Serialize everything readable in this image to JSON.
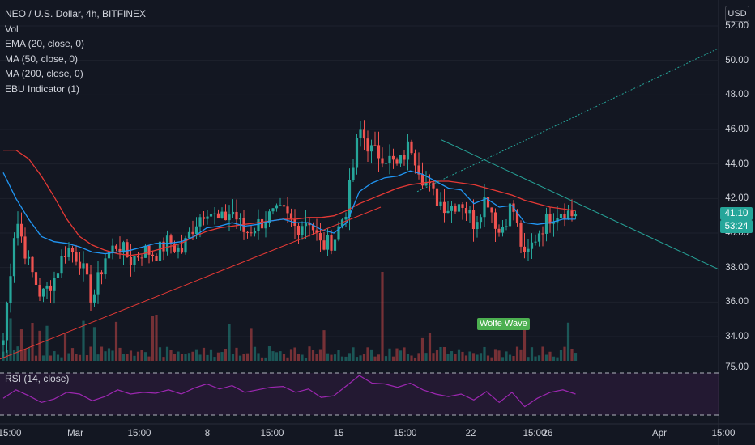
{
  "legend": {
    "title": "NEO / U.S. Dollar, 4h, BITFINEX",
    "vol": "Vol",
    "ema": "EMA (20, close, 0)",
    "ma50": "MA (50, close, 0)",
    "ma200": "MA (200, close, 0)",
    "ebu": "EBU Indicator (1)"
  },
  "currency": "USD",
  "price_label": "41.10",
  "countdown": "53:24",
  "wolfe_label": "Wolfe Wave",
  "rsi": {
    "label": "RSI (14, close)",
    "upper_label": "75.00"
  },
  "colors": {
    "up": "#26a69a",
    "down": "#ef5350",
    "ema": "#2196f3",
    "ma": "#e53935",
    "rsi": "#9c27b0",
    "bg": "#131722"
  },
  "chart_data": {
    "type": "candlestick",
    "symbol": "NEO / U.S. Dollar",
    "interval": "4h",
    "exchange": "BITFINEX",
    "y_ticks": [
      "52.00",
      "50.00",
      "48.00",
      "46.00",
      "44.00",
      "42.00",
      "40.00",
      "38.00",
      "36.00",
      "34.00"
    ],
    "ylim": [
      32.5,
      53.5
    ],
    "x_ticks": [
      "15:00",
      "Mar",
      "15:00",
      "8",
      "15:00",
      "15",
      "15:00",
      "22",
      "15:00",
      "26",
      "Apr",
      "15:00"
    ],
    "last_price": 41.1,
    "close_path": [
      33.8,
      41.0,
      38.2,
      36.3,
      37.4,
      39.2,
      38.5,
      36.1,
      38.6,
      39.4,
      38.4,
      39.0,
      38.8,
      39.5,
      38.9,
      40.5,
      41.5,
      40.6,
      41.3,
      40.0,
      40.5,
      41.0,
      41.2,
      40.3,
      40.9,
      39.2,
      39.6,
      41.5,
      46.0,
      44.7,
      44.5,
      43.8,
      45.2,
      43.2,
      42.0,
      41.5,
      41.9,
      40.6,
      42.2,
      40.0,
      41.7,
      38.4,
      40.0,
      41.0,
      41.4,
      40.9
    ],
    "ema20": [
      43.5,
      42.0,
      40.8,
      39.8,
      39.5,
      39.4,
      39.2,
      38.9,
      38.8,
      38.9,
      39.0,
      39.2,
      39.4,
      39.4,
      39.5,
      39.8,
      40.3,
      40.4,
      40.6,
      40.4,
      40.5,
      40.7,
      40.8,
      40.6,
      40.6,
      40.2,
      40.0,
      40.6,
      42.4,
      42.9,
      43.2,
      43.3,
      43.6,
      43.4,
      43.0,
      42.6,
      42.5,
      41.7,
      42.0,
      41.5,
      41.6,
      40.6,
      40.5,
      40.6,
      40.8,
      40.8
    ],
    "ma50": [
      44.8,
      44.8,
      44.3,
      43.3,
      42.1,
      40.8,
      39.8,
      39.3,
      39.0,
      38.8,
      38.7,
      38.8,
      39.0,
      39.2,
      39.4,
      39.8,
      40.1,
      40.3,
      40.4,
      40.5,
      40.6,
      40.7,
      40.8,
      40.8,
      40.9,
      40.9,
      41.0,
      41.3,
      41.7,
      42.0,
      42.3,
      42.6,
      42.8,
      42.9,
      43.0,
      43.0,
      42.9,
      42.8,
      42.6,
      42.4,
      42.2,
      41.9,
      41.7,
      41.5,
      41.4,
      41.3
    ],
    "rsi_upper": 75,
    "rsi_lower": 25,
    "rsi_series": [
      45,
      55,
      48,
      40,
      44,
      52,
      50,
      42,
      47,
      55,
      50,
      52,
      51,
      55,
      50,
      57,
      62,
      56,
      60,
      52,
      55,
      58,
      59,
      52,
      56,
      46,
      48,
      60,
      72,
      63,
      62,
      58,
      63,
      55,
      50,
      47,
      50,
      43,
      53,
      40,
      52,
      35,
      45,
      52,
      55,
      50
    ]
  }
}
